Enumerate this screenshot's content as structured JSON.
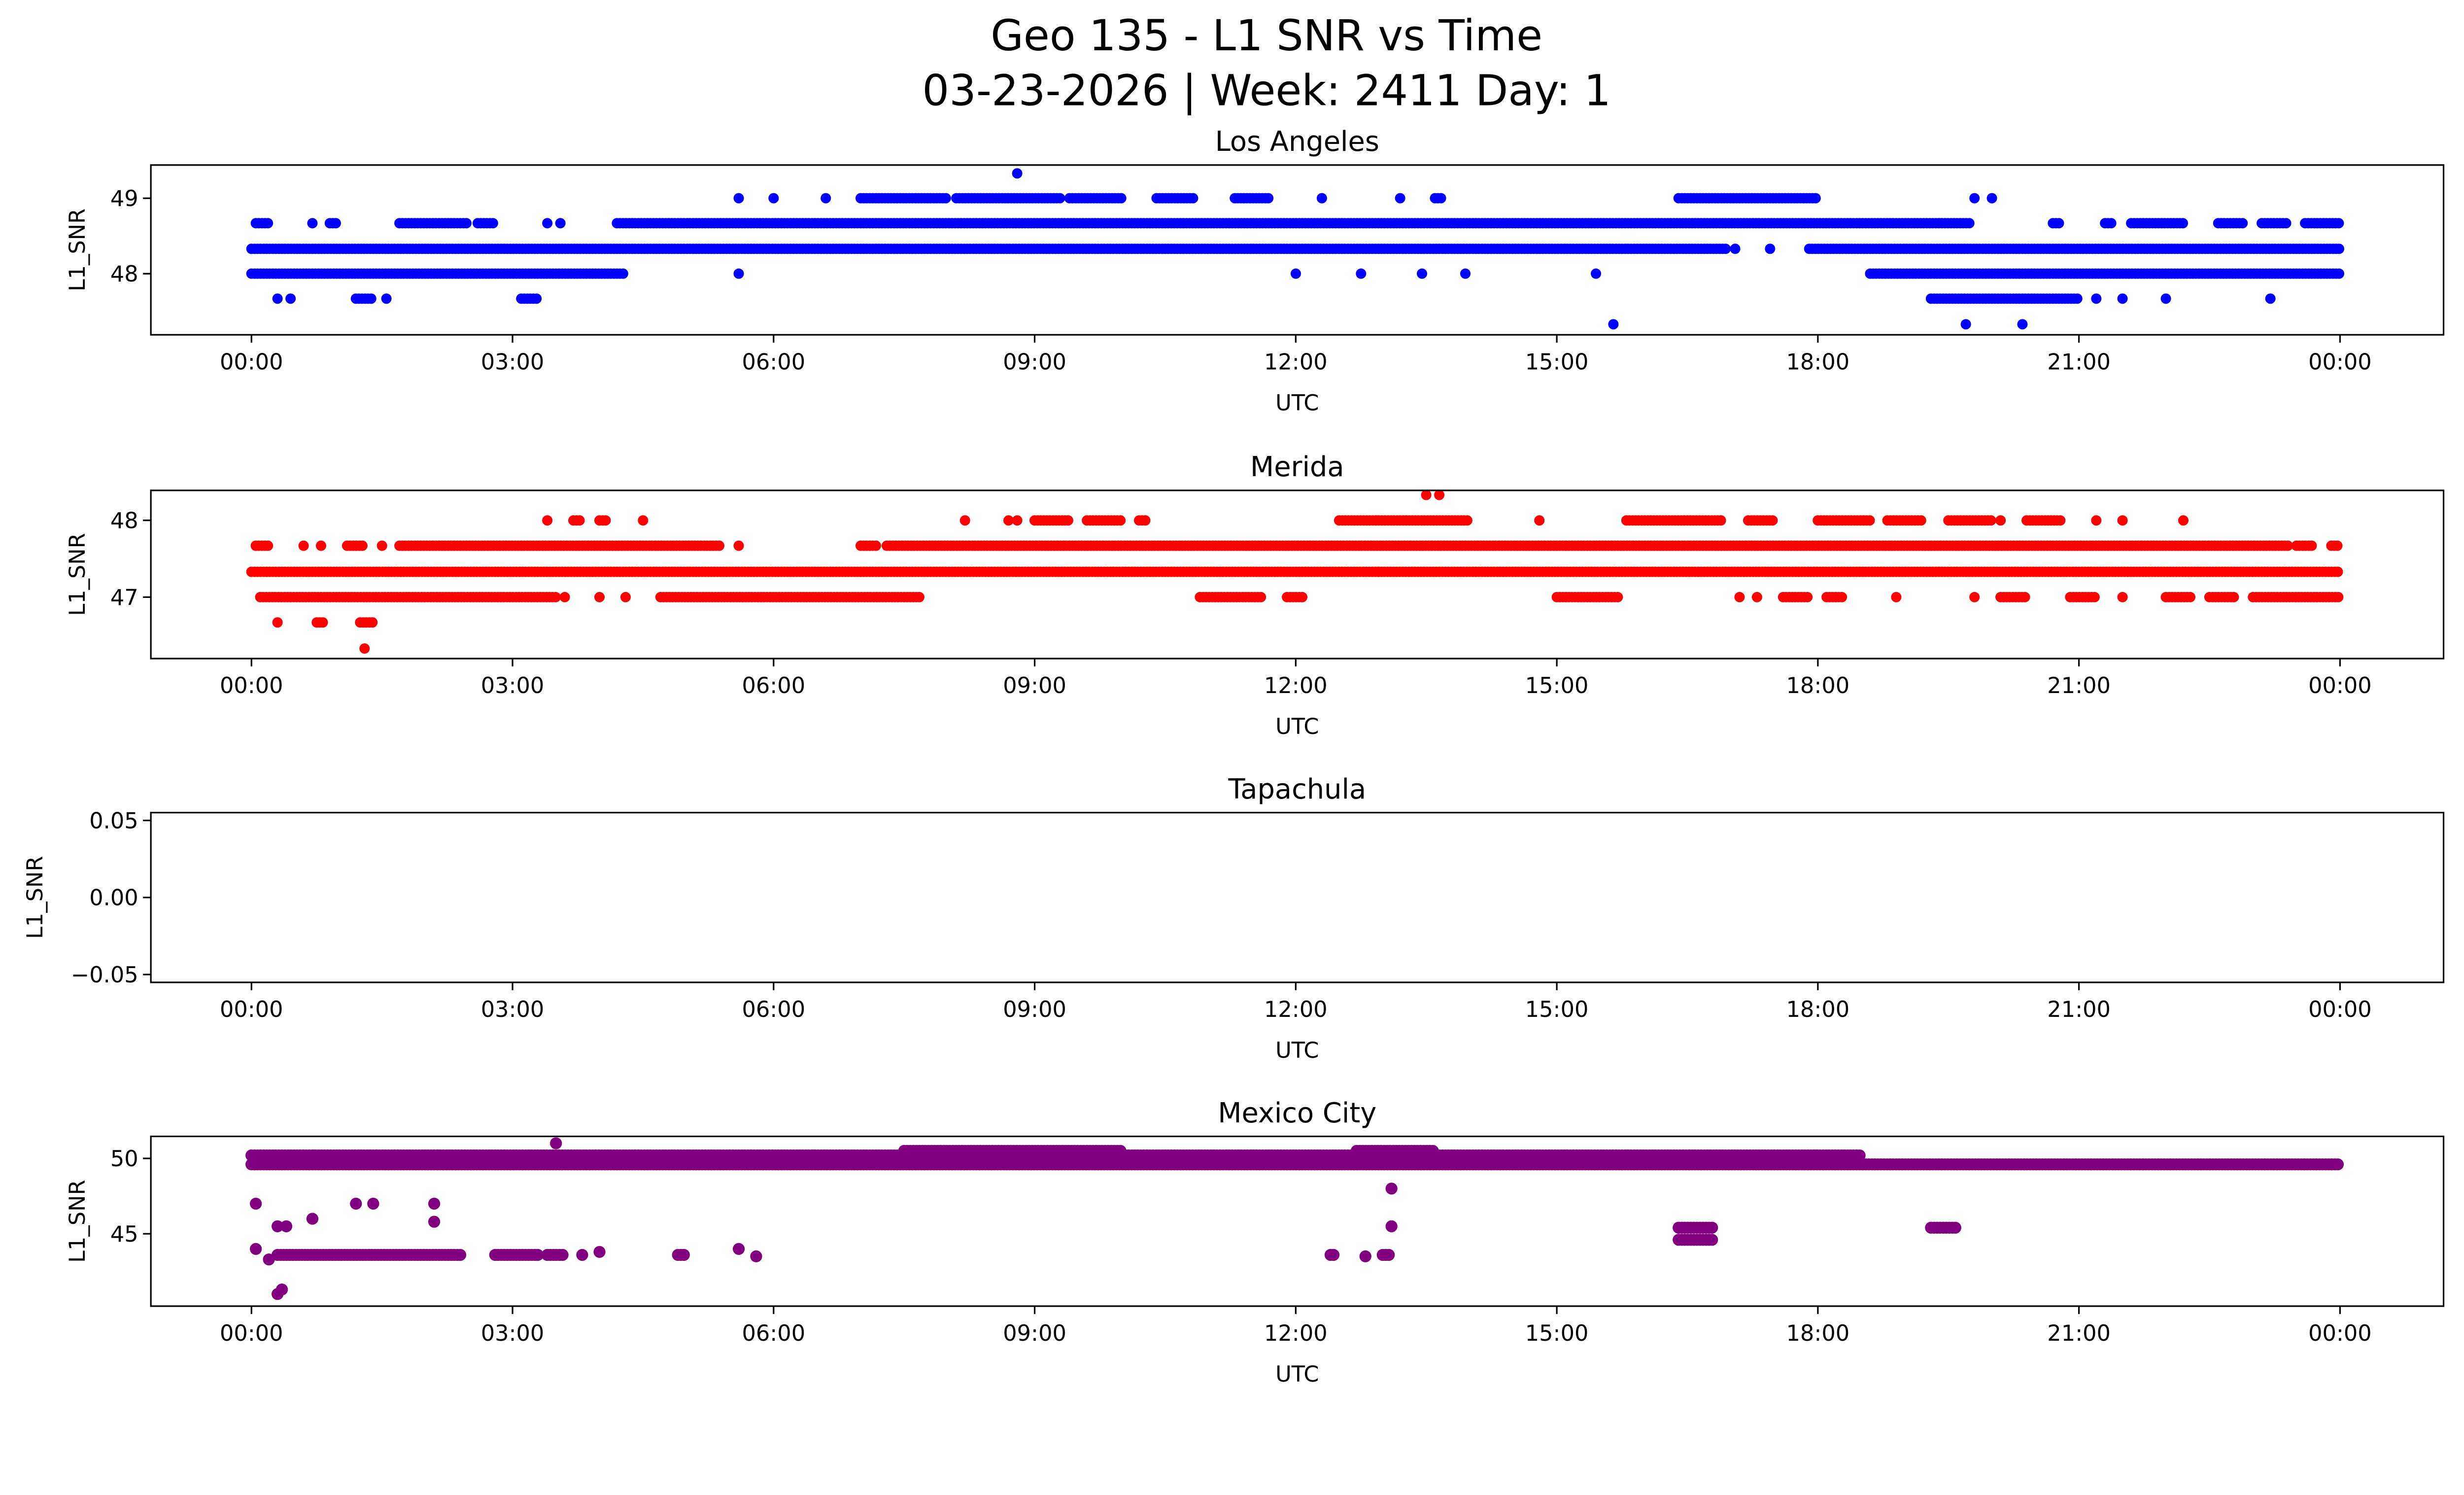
{
  "title_line1": "Geo 135 - L1 SNR vs Time",
  "title_line2": "03-23-2026 | Week: 2411 Day: 1",
  "chart_data": [
    {
      "type": "scatter",
      "title": "Los Angeles",
      "color": "#0000ff",
      "xlabel": "UTC",
      "ylabel": "L1_SNR",
      "xlim_hours": [
        -1.156,
        25.19
      ],
      "ylim": [
        47.19,
        49.44
      ],
      "x_ticks": [
        {
          "h": 0,
          "label": "00:00"
        },
        {
          "h": 3,
          "label": "03:00"
        },
        {
          "h": 6,
          "label": "06:00"
        },
        {
          "h": 9,
          "label": "09:00"
        },
        {
          "h": 12,
          "label": "12:00"
        },
        {
          "h": 15,
          "label": "15:00"
        },
        {
          "h": 18,
          "label": "18:00"
        },
        {
          "h": 21,
          "label": "21:00"
        },
        {
          "h": 24,
          "label": "00:00"
        }
      ],
      "y_ticks": [
        {
          "v": 48,
          "label": "48"
        },
        {
          "v": 49,
          "label": "49"
        }
      ],
      "runs": [
        {
          "y": 48.0,
          "x": [
            [
              0,
              4.3
            ],
            [
              18.6,
              24
            ]
          ]
        },
        {
          "y": 48.33,
          "x": [
            [
              0,
              16.95
            ],
            [
              17.9,
              24
            ]
          ]
        },
        {
          "y": 48.67,
          "x": [
            [
              0.05,
              0.2
            ],
            [
              0.9,
              1.0
            ],
            [
              1.7,
              2.5
            ],
            [
              2.6,
              2.8
            ],
            [
              4.2,
              19.75
            ],
            [
              20.7,
              20.8
            ],
            [
              21.3,
              21.4
            ],
            [
              21.6,
              22.2
            ],
            [
              22.6,
              22.9
            ],
            [
              23.1,
              23.4
            ],
            [
              23.6,
              24
            ]
          ]
        },
        {
          "y": 49.0,
          "x": [
            [
              7.0,
              8.0
            ],
            [
              8.1,
              9.3
            ],
            [
              9.4,
              10.0
            ],
            [
              10.4,
              10.85
            ],
            [
              11.3,
              11.7
            ],
            [
              13.6,
              13.7
            ],
            [
              16.4,
              18.0
            ]
          ]
        },
        {
          "y": 47.67,
          "x": [
            [
              1.2,
              1.4
            ],
            [
              3.1,
              3.3
            ],
            [
              19.3,
              21.0
            ]
          ]
        }
      ],
      "points": [
        [
          5.6,
          48.0
        ],
        [
          12.0,
          48.0
        ],
        [
          12.75,
          48.0
        ],
        [
          13.45,
          48.0
        ],
        [
          13.95,
          48.0
        ],
        [
          15.45,
          48.0
        ],
        [
          17.05,
          48.33
        ],
        [
          17.45,
          48.33
        ],
        [
          0.7,
          48.67
        ],
        [
          3.4,
          48.67
        ],
        [
          3.55,
          48.67
        ],
        [
          5.6,
          49.0
        ],
        [
          6.0,
          49.0
        ],
        [
          6.6,
          49.0
        ],
        [
          12.3,
          49.0
        ],
        [
          13.2,
          49.0
        ],
        [
          19.8,
          49.0
        ],
        [
          20.0,
          49.0
        ],
        [
          0.3,
          47.67
        ],
        [
          0.45,
          47.67
        ],
        [
          1.55,
          47.67
        ],
        [
          21.2,
          47.67
        ],
        [
          21.5,
          47.67
        ],
        [
          22.0,
          47.67
        ],
        [
          23.2,
          47.67
        ],
        [
          15.65,
          47.33
        ],
        [
          19.7,
          47.33
        ],
        [
          20.35,
          47.33
        ],
        [
          8.8,
          49.33
        ]
      ]
    },
    {
      "type": "scatter",
      "title": "Merida",
      "color": "#ff0000",
      "xlabel": "UTC",
      "ylabel": "L1_SNR",
      "xlim_hours": [
        -1.156,
        25.19
      ],
      "ylim": [
        46.2,
        48.39
      ],
      "x_ticks": [
        {
          "h": 0,
          "label": "00:00"
        },
        {
          "h": 3,
          "label": "03:00"
        },
        {
          "h": 6,
          "label": "06:00"
        },
        {
          "h": 9,
          "label": "09:00"
        },
        {
          "h": 12,
          "label": "12:00"
        },
        {
          "h": 15,
          "label": "15:00"
        },
        {
          "h": 18,
          "label": "18:00"
        },
        {
          "h": 21,
          "label": "21:00"
        },
        {
          "h": 24,
          "label": "00:00"
        }
      ],
      "y_ticks": [
        {
          "v": 47,
          "label": "47"
        },
        {
          "v": 48,
          "label": "48"
        }
      ],
      "runs": [
        {
          "y": 48.0,
          "x": [
            [
              3.7,
              3.8
            ],
            [
              4.0,
              4.1
            ],
            [
              9.0,
              9.4
            ],
            [
              9.6,
              10.0
            ],
            [
              10.2,
              10.3
            ],
            [
              12.5,
              14.0
            ],
            [
              15.8,
              16.9
            ],
            [
              17.2,
              17.5
            ],
            [
              18.0,
              18.6
            ],
            [
              18.8,
              19.2
            ],
            [
              19.5,
              20.0
            ],
            [
              20.4,
              20.8
            ]
          ]
        },
        {
          "y": 47.67,
          "x": [
            [
              0.05,
              0.2
            ],
            [
              1.1,
              1.3
            ],
            [
              1.7,
              5.4
            ],
            [
              7.0,
              7.2
            ],
            [
              7.3,
              23.4
            ],
            [
              23.5,
              23.7
            ],
            [
              23.9,
              24
            ]
          ]
        },
        {
          "y": 47.33,
          "x": [
            [
              0,
              24
            ]
          ]
        },
        {
          "y": 47.0,
          "x": [
            [
              0.1,
              3.5
            ],
            [
              4.7,
              7.7
            ],
            [
              10.9,
              11.6
            ],
            [
              11.9,
              12.1
            ],
            [
              15.0,
              15.7
            ],
            [
              17.6,
              17.9
            ],
            [
              18.1,
              18.3
            ],
            [
              20.1,
              20.4
            ],
            [
              20.9,
              21.2
            ],
            [
              22.0,
              22.3
            ],
            [
              22.5,
              22.8
            ],
            [
              23.0,
              24
            ]
          ]
        },
        {
          "y": 46.67,
          "x": [
            [
              0.75,
              0.85
            ],
            [
              1.25,
              1.4
            ]
          ]
        }
      ],
      "points": [
        [
          13.5,
          48.33
        ],
        [
          13.65,
          48.33
        ],
        [
          3.4,
          48.0
        ],
        [
          4.5,
          48.0
        ],
        [
          8.2,
          48.0
        ],
        [
          8.7,
          48.0
        ],
        [
          8.8,
          48.0
        ],
        [
          14.8,
          48.0
        ],
        [
          20.1,
          48.0
        ],
        [
          21.2,
          48.0
        ],
        [
          21.5,
          48.0
        ],
        [
          22.2,
          48.0
        ],
        [
          0.6,
          47.67
        ],
        [
          0.8,
          47.67
        ],
        [
          1.5,
          47.67
        ],
        [
          5.6,
          47.67
        ],
        [
          3.6,
          47.0
        ],
        [
          4.0,
          47.0
        ],
        [
          4.3,
          47.0
        ],
        [
          17.1,
          47.0
        ],
        [
          17.3,
          47.0
        ],
        [
          18.9,
          47.0
        ],
        [
          19.8,
          47.0
        ],
        [
          21.5,
          47.0
        ],
        [
          0.3,
          46.67
        ],
        [
          1.3,
          46.33
        ],
        [
          12.95,
          47.33
        ]
      ]
    },
    {
      "type": "scatter",
      "title": "Tapachula",
      "color": "#008000",
      "xlabel": "UTC",
      "ylabel": "L1_SNR",
      "xlim_hours": [
        -1.156,
        25.19
      ],
      "ylim": [
        -0.0551,
        0.0551
      ],
      "x_ticks": [
        {
          "h": 0,
          "label": "00:00"
        },
        {
          "h": 3,
          "label": "03:00"
        },
        {
          "h": 6,
          "label": "06:00"
        },
        {
          "h": 9,
          "label": "09:00"
        },
        {
          "h": 12,
          "label": "12:00"
        },
        {
          "h": 15,
          "label": "15:00"
        },
        {
          "h": 18,
          "label": "18:00"
        },
        {
          "h": 21,
          "label": "21:00"
        },
        {
          "h": 24,
          "label": "00:00"
        }
      ],
      "y_ticks": [
        {
          "v": -0.05,
          "label": "−0.05"
        },
        {
          "v": 0,
          "label": "0.00"
        },
        {
          "v": 0.05,
          "label": "0.05"
        }
      ],
      "runs": [],
      "points": []
    },
    {
      "type": "scatter",
      "title": "Mexico City",
      "color": "#800080",
      "xlabel": "UTC",
      "ylabel": "L1_SNR",
      "xlim_hours": [
        -1.156,
        25.19
      ],
      "ylim": [
        40.2,
        51.46
      ],
      "x_ticks": [
        {
          "h": 0,
          "label": "00:00"
        },
        {
          "h": 3,
          "label": "03:00"
        },
        {
          "h": 6,
          "label": "06:00"
        },
        {
          "h": 9,
          "label": "09:00"
        },
        {
          "h": 12,
          "label": "12:00"
        },
        {
          "h": 15,
          "label": "15:00"
        },
        {
          "h": 18,
          "label": "18:00"
        },
        {
          "h": 21,
          "label": "21:00"
        },
        {
          "h": 24,
          "label": "00:00"
        }
      ],
      "y_ticks": [
        {
          "v": 45,
          "label": "45"
        },
        {
          "v": 50,
          "label": "50"
        }
      ],
      "runs": [
        {
          "y": 49.6,
          "x": [
            [
              0,
              24
            ]
          ]
        },
        {
          "y": 50.2,
          "x": [
            [
              0,
              18.5
            ]
          ]
        },
        {
          "y": 50.5,
          "x": [
            [
              7.5,
              10.0
            ],
            [
              12.7,
              13.6
            ]
          ]
        },
        {
          "y": 43.6,
          "x": [
            [
              0.3,
              2.4
            ],
            [
              2.8,
              3.3
            ],
            [
              3.4,
              3.6
            ],
            [
              4.9,
              5.0
            ],
            [
              12.4,
              12.45
            ],
            [
              13.0,
              13.1
            ]
          ]
        },
        {
          "y": 44.6,
          "x": [
            [
              16.4,
              16.8
            ]
          ]
        },
        {
          "y": 45.4,
          "x": [
            [
              16.4,
              16.8
            ],
            [
              19.3,
              19.6
            ]
          ]
        }
      ],
      "points": [
        [
          3.5,
          51.0
        ],
        [
          0.05,
          47.0
        ],
        [
          1.2,
          47.0
        ],
        [
          1.4,
          47.0
        ],
        [
          2.1,
          47.0
        ],
        [
          0.3,
          45.5
        ],
        [
          0.4,
          45.5
        ],
        [
          0.7,
          46.0
        ],
        [
          2.1,
          45.8
        ],
        [
          13.1,
          45.5
        ],
        [
          13.1,
          48.0
        ],
        [
          0.05,
          44.0
        ],
        [
          0.2,
          43.3
        ],
        [
          3.8,
          43.6
        ],
        [
          4.0,
          43.8
        ],
        [
          5.6,
          44.0
        ],
        [
          5.8,
          43.5
        ],
        [
          12.8,
          43.5
        ],
        [
          0.3,
          41.0
        ],
        [
          0.35,
          41.3
        ]
      ]
    }
  ]
}
